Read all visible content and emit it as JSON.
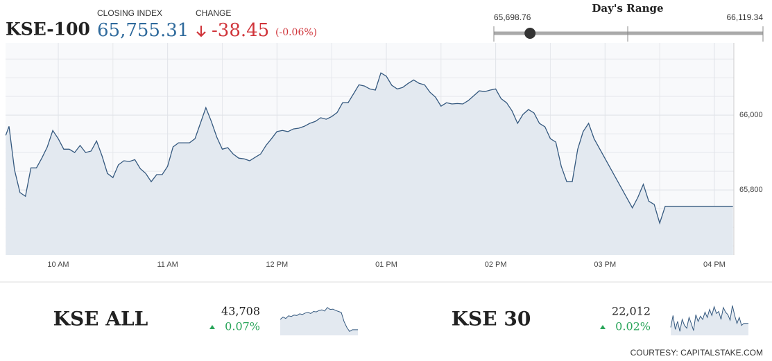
{
  "header": {
    "symbol": "KSE-100",
    "closing_label": "CLOSING INDEX",
    "closing": "65,755.31",
    "change_label": "CHANGE",
    "change": "-38.45",
    "change_pct": "(-0.06%)",
    "range_label": "Day's Range",
    "range_low": {
      "value": 65698.76,
      "label": "65,698.76"
    },
    "range_high": {
      "value": 66119.34,
      "label": "66,119.34"
    },
    "range_current": 65755.31
  },
  "chart_data": {
    "type": "line",
    "color": "#35597f",
    "fill": "#e3e9f0",
    "x": [
      9.52,
      9.55,
      9.6,
      9.65,
      9.7,
      9.75,
      9.8,
      9.85,
      9.9,
      9.95,
      10,
      10.05,
      10.1,
      10.15,
      10.2,
      10.25,
      10.3,
      10.35,
      10.4,
      10.45,
      10.5,
      10.55,
      10.6,
      10.65,
      10.7,
      10.75,
      10.8,
      10.85,
      10.9,
      10.95,
      11,
      11.05,
      11.1,
      11.15,
      11.2,
      11.25,
      11.3,
      11.35,
      11.4,
      11.45,
      11.5,
      11.55,
      11.6,
      11.65,
      11.7,
      11.75,
      11.8,
      11.85,
      11.9,
      11.95,
      12,
      12.05,
      12.1,
      12.15,
      12.2,
      12.25,
      12.3,
      12.35,
      12.4,
      12.45,
      12.5,
      12.55,
      12.6,
      12.65,
      12.7,
      12.75,
      12.8,
      12.85,
      12.9,
      12.95,
      13,
      13.05,
      13.1,
      13.15,
      13.2,
      13.25,
      13.3,
      13.35,
      13.4,
      13.45,
      13.5,
      13.55,
      13.6,
      13.65,
      13.7,
      13.75,
      13.8,
      13.85,
      13.9,
      13.95,
      14,
      14.05,
      14.1,
      14.15,
      14.2,
      14.25,
      14.3,
      14.35,
      14.4,
      14.45,
      14.5,
      14.55,
      14.6,
      14.65,
      14.7,
      14.75,
      14.8,
      14.85,
      14.9,
      15.25,
      15.3,
      15.35,
      15.4,
      15.45,
      15.5,
      15.55,
      16.17
    ],
    "values": [
      65946,
      65970,
      65854,
      65793,
      65783,
      65859,
      65859,
      65885,
      65915,
      65959,
      65937,
      65909,
      65909,
      65900,
      65919,
      65900,
      65904,
      65931,
      65891,
      65844,
      65833,
      65867,
      65878,
      65876,
      65881,
      65857,
      65844,
      65822,
      65841,
      65841,
      65863,
      65915,
      65926,
      65926,
      65926,
      65937,
      65978,
      66020,
      65983,
      65941,
      65909,
      65913,
      65896,
      65885,
      65883,
      65878,
      65887,
      65896,
      65919,
      65937,
      65956,
      65959,
      65956,
      65963,
      65965,
      65970,
      65978,
      65983,
      65993,
      65989,
      65996,
      66007,
      66033,
      66033,
      66057,
      66081,
      66078,
      66070,
      66067,
      66113,
      66104,
      66080,
      66070,
      66074,
      66085,
      66094,
      66085,
      66081,
      66061,
      66048,
      66024,
      66033,
      66030,
      66031,
      66030,
      66039,
      66052,
      66065,
      66063,
      66067,
      66070,
      66044,
      66033,
      66011,
      65978,
      66002,
      66015,
      66006,
      65978,
      65969,
      65937,
      65928,
      65863,
      65822,
      65822,
      65909,
      65956,
      65978,
      65937,
      65752,
      65780,
      65815,
      65770,
      65761,
      65711,
      65756,
      65756
    ],
    "xlim": [
      9.518,
      16.178
    ],
    "ylim": [
      65626,
      66193
    ],
    "xticks": [
      {
        "value": 10,
        "label": "10 AM"
      },
      {
        "value": 11,
        "label": "11 AM"
      },
      {
        "value": 12,
        "label": "12 PM"
      },
      {
        "value": 13,
        "label": "01 PM"
      },
      {
        "value": 14,
        "label": "02 PM"
      },
      {
        "value": 15,
        "label": "03 PM"
      },
      {
        "value": 16,
        "label": "04 PM"
      }
    ],
    "yticks": [
      {
        "value": 65800,
        "label": "65,800"
      },
      {
        "value": 66000,
        "label": "66,000"
      }
    ],
    "yminor": [
      65650,
      65700,
      65750,
      65850,
      65900,
      65950,
      66050,
      66100,
      66150
    ],
    "xminor": [
      10.5,
      11.5,
      12.5,
      13.5,
      14.5,
      15.5
    ],
    "grid": true
  },
  "indices": [
    {
      "name": "KSE ALL",
      "value": "43,708",
      "change": "0.07%",
      "spark": {
        "ylim": [
          43620,
          43780
        ],
        "values": [
          43700,
          43712,
          43705,
          43718,
          43715,
          43722,
          43720,
          43728,
          43725,
          43732,
          43735,
          43730,
          43740,
          43738,
          43745,
          43748,
          43742,
          43760,
          43750,
          43752,
          43745,
          43740,
          43735,
          43690,
          43660,
          43640,
          43648,
          43648,
          43648
        ]
      }
    },
    {
      "name": "KSE 30",
      "value": "22,012",
      "change": "0.02%",
      "spark": {
        "ylim": [
          21960,
          22040
        ],
        "values": [
          21980,
          22010,
          21975,
          21995,
          21970,
          22000,
          21985,
          21978,
          22005,
          21990,
          21972,
          22012,
          21995,
          22008,
          22000,
          22018,
          22005,
          22025,
          22010,
          22032,
          22015,
          22020,
          22000,
          22030,
          22018,
          22012,
          21998,
          22035,
          22010,
          21990,
          22005,
          21985,
          21990,
          21990,
          21990
        ]
      }
    }
  ]
}
